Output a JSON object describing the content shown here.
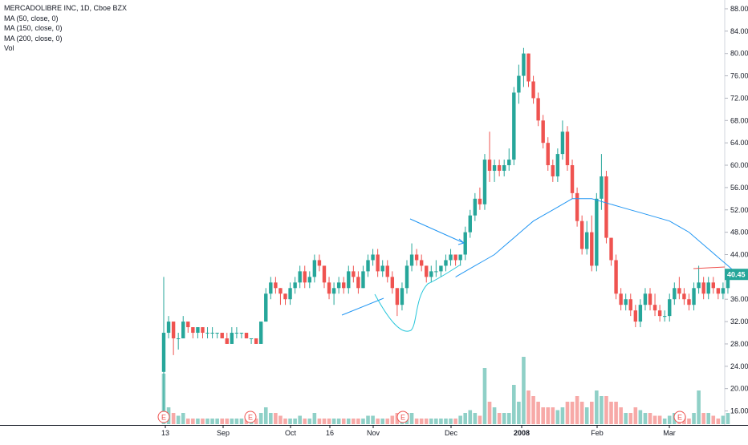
{
  "legend": {
    "title": "MERCADOLIBRE INC, 1D, Cboe BZX",
    "ma50": "MA (50, close, 0)",
    "ma150": "MA (150, close, 0)",
    "ma200": "MA (200, close, 0)",
    "vol": "Vol"
  },
  "colors": {
    "up": "#26a69a",
    "down": "#ef5350",
    "up_vol": "#8fd0c7",
    "down_vol": "#f7a9a7",
    "ma": "#2196f3",
    "last_price_bg": "#26a69a",
    "annotation": "#2196f3",
    "earnings": "#ef5350"
  },
  "chart_data": {
    "type": "candlestick",
    "y_axis": {
      "ticks": [
        "88.00",
        "84.00",
        "80.00",
        "76.00",
        "72.00",
        "68.00",
        "64.00",
        "60.00",
        "56.00",
        "52.00",
        "48.00",
        "44.00",
        "40.00",
        "36.00",
        "32.00",
        "28.00",
        "24.00",
        "20.00",
        "16.00"
      ],
      "ylim": [
        14.5,
        89.0
      ],
      "side": "right"
    },
    "x_axis": {
      "labels": [
        "13",
        "Sep",
        "Oct",
        "16",
        "Nov",
        "Dec",
        "2008",
        "Feb",
        "Mar"
      ]
    },
    "last_price": "40.45",
    "earnings_marker": "E",
    "earnings_count": 4,
    "candles": [
      [
        23,
        40,
        16,
        30,
        9
      ],
      [
        30,
        33,
        29,
        32,
        3
      ],
      [
        32,
        32,
        26,
        29,
        2
      ],
      [
        29,
        30,
        27,
        29,
        1.5
      ],
      [
        29,
        33,
        29,
        32,
        2
      ],
      [
        32,
        32,
        30,
        31,
        1
      ],
      [
        31,
        31,
        29,
        30,
        1
      ],
      [
        30,
        31,
        29,
        31,
        1
      ],
      [
        31,
        31,
        29,
        30,
        1
      ],
      [
        30,
        31,
        29,
        30,
        1
      ],
      [
        30,
        31,
        29,
        30,
        1
      ],
      [
        30,
        30,
        29,
        30,
        1
      ],
      [
        30,
        30,
        29,
        29,
        1
      ],
      [
        29,
        30,
        28,
        28,
        1
      ],
      [
        28,
        31,
        28,
        30,
        1
      ],
      [
        30,
        31,
        29,
        30,
        1
      ],
      [
        30,
        30,
        29,
        30,
        1
      ],
      [
        30,
        30,
        29,
        29,
        1
      ],
      [
        29,
        29,
        28,
        29,
        1
      ],
      [
        29,
        29,
        28,
        28,
        1
      ],
      [
        28,
        32,
        28,
        32,
        2
      ],
      [
        32,
        38,
        32,
        37,
        3
      ],
      [
        37,
        40,
        36,
        39,
        2
      ],
      [
        39,
        40,
        37,
        38,
        2
      ],
      [
        38,
        38,
        35,
        37,
        1.5
      ],
      [
        37,
        37,
        35,
        36,
        1
      ],
      [
        36,
        39,
        35,
        38,
        1
      ],
      [
        38,
        40,
        37,
        39,
        1
      ],
      [
        39,
        42,
        38,
        41,
        1.5
      ],
      [
        41,
        42,
        38,
        39,
        1
      ],
      [
        39,
        41,
        38,
        40,
        1
      ],
      [
        40,
        44,
        39,
        43,
        2
      ],
      [
        43,
        44,
        41,
        42,
        1
      ],
      [
        42,
        42,
        38,
        39,
        1
      ],
      [
        39,
        40,
        36,
        37,
        1
      ],
      [
        37,
        39,
        35,
        38,
        1
      ],
      [
        38,
        40,
        37,
        39,
        1
      ],
      [
        39,
        40,
        37,
        38,
        1
      ],
      [
        38,
        42,
        37,
        41,
        1
      ],
      [
        41,
        42,
        39,
        40,
        1
      ],
      [
        40,
        41,
        37,
        38,
        1
      ],
      [
        38,
        42,
        38,
        41,
        1
      ],
      [
        41,
        44,
        40,
        43,
        1.5
      ],
      [
        43,
        45,
        42,
        44,
        1.5
      ],
      [
        44,
        45,
        40,
        41,
        1
      ],
      [
        41,
        43,
        40,
        42,
        1
      ],
      [
        42,
        43,
        39,
        40,
        1
      ],
      [
        40,
        41,
        37,
        38,
        1.5
      ],
      [
        38,
        38,
        33,
        35,
        2
      ],
      [
        35,
        39,
        34,
        38,
        2
      ],
      [
        38,
        43,
        37,
        42,
        2
      ],
      [
        42,
        46,
        41,
        44,
        2
      ],
      [
        44,
        45,
        42,
        43,
        1
      ],
      [
        43,
        44,
        41,
        42,
        1
      ],
      [
        42,
        42,
        39,
        40,
        1
      ],
      [
        40,
        42,
        39,
        41,
        1
      ],
      [
        41,
        43,
        40,
        41,
        1
      ],
      [
        41,
        42,
        40,
        42,
        1
      ],
      [
        42,
        44,
        41,
        43,
        1
      ],
      [
        43,
        45,
        42,
        44,
        1
      ],
      [
        44,
        44,
        42,
        43,
        1
      ],
      [
        43,
        44,
        42,
        44,
        1.5
      ],
      [
        44,
        49,
        43,
        48,
        2
      ],
      [
        48,
        52,
        47,
        51,
        2.5
      ],
      [
        51,
        55,
        50,
        54,
        2
      ],
      [
        54,
        56,
        52,
        53,
        1.5
      ],
      [
        53,
        62,
        52,
        61,
        10
      ],
      [
        61,
        66,
        57,
        59,
        4
      ],
      [
        59,
        61,
        57,
        60,
        3
      ],
      [
        60,
        61,
        58,
        59,
        2
      ],
      [
        59,
        61,
        58,
        60,
        2
      ],
      [
        60,
        63,
        59,
        61,
        2
      ],
      [
        61,
        74,
        60,
        73,
        7
      ],
      [
        73,
        78,
        71,
        76,
        4
      ],
      [
        76,
        81,
        74,
        80,
        12
      ],
      [
        80,
        80,
        74,
        75,
        6
      ],
      [
        75,
        76,
        71,
        72,
        5
      ],
      [
        72,
        73,
        67,
        68,
        4
      ],
      [
        68,
        69,
        63,
        64,
        3
      ],
      [
        64,
        65,
        59,
        60,
        3
      ],
      [
        60,
        61,
        57,
        58,
        3
      ],
      [
        58,
        63,
        57,
        62,
        2.5
      ],
      [
        62,
        68,
        61,
        66,
        3
      ],
      [
        66,
        67,
        59,
        60,
        4
      ],
      [
        60,
        61,
        54,
        55,
        4
      ],
      [
        55,
        56,
        49,
        50,
        5
      ],
      [
        50,
        51,
        44,
        45,
        4
      ],
      [
        45,
        50,
        44,
        48,
        3
      ],
      [
        48,
        51,
        41,
        42,
        4
      ],
      [
        42,
        55,
        41,
        54,
        6
      ],
      [
        54,
        62,
        52,
        58,
        5
      ],
      [
        58,
        59,
        46,
        47,
        5
      ],
      [
        47,
        47,
        42,
        43,
        4
      ],
      [
        43,
        44,
        36,
        37,
        4
      ],
      [
        37,
        38,
        34,
        35,
        3
      ],
      [
        35,
        37,
        34,
        36,
        2
      ],
      [
        36,
        37,
        33,
        34,
        2
      ],
      [
        34,
        35,
        31,
        32,
        3
      ],
      [
        32,
        36,
        31,
        35,
        2.5
      ],
      [
        35,
        38,
        34,
        37,
        2
      ],
      [
        37,
        38,
        34,
        35,
        2
      ],
      [
        35,
        37,
        33,
        34,
        1.5
      ],
      [
        34,
        35,
        32,
        33,
        1.5
      ],
      [
        33,
        34,
        32,
        33,
        1
      ],
      [
        33,
        37,
        32,
        36,
        1.5
      ],
      [
        36,
        39,
        35,
        38,
        2
      ],
      [
        38,
        40,
        36,
        37,
        1.5
      ],
      [
        37,
        38,
        35,
        36,
        1.5
      ],
      [
        36,
        37,
        34,
        35,
        1
      ],
      [
        35,
        39,
        34,
        38,
        2
      ],
      [
        38,
        42,
        37,
        39,
        6
      ],
      [
        39,
        40,
        36,
        37,
        2
      ],
      [
        37,
        40,
        36,
        39,
        2
      ],
      [
        39,
        40,
        37,
        38,
        1.5
      ],
      [
        38,
        38,
        36,
        37,
        1
      ],
      [
        37,
        39,
        36,
        38,
        1.5
      ],
      [
        38,
        41,
        37,
        40,
        2
      ]
    ],
    "ma_line": [
      [
        60,
        40
      ],
      [
        62,
        41
      ],
      [
        64,
        42
      ],
      [
        66,
        43
      ],
      [
        68,
        44
      ],
      [
        70,
        45.5
      ],
      [
        72,
        47
      ],
      [
        74,
        48.5
      ],
      [
        76,
        50
      ],
      [
        78,
        51
      ],
      [
        80,
        52
      ],
      [
        82,
        53
      ],
      [
        84,
        54
      ],
      [
        86,
        54
      ],
      [
        88,
        54
      ],
      [
        90,
        53.5
      ],
      [
        92,
        53
      ],
      [
        94,
        52.5
      ],
      [
        96,
        52
      ],
      [
        98,
        51.5
      ],
      [
        100,
        51
      ],
      [
        102,
        50.5
      ],
      [
        104,
        50
      ],
      [
        106,
        49
      ],
      [
        108,
        48
      ],
      [
        110,
        46.5
      ],
      [
        112,
        45
      ],
      [
        114,
        43.5
      ],
      [
        116,
        42
      ],
      [
        118,
        40.5
      ]
    ]
  },
  "annotations": {
    "arrow_note": "trend arrow",
    "red_line_value": 42.5
  }
}
